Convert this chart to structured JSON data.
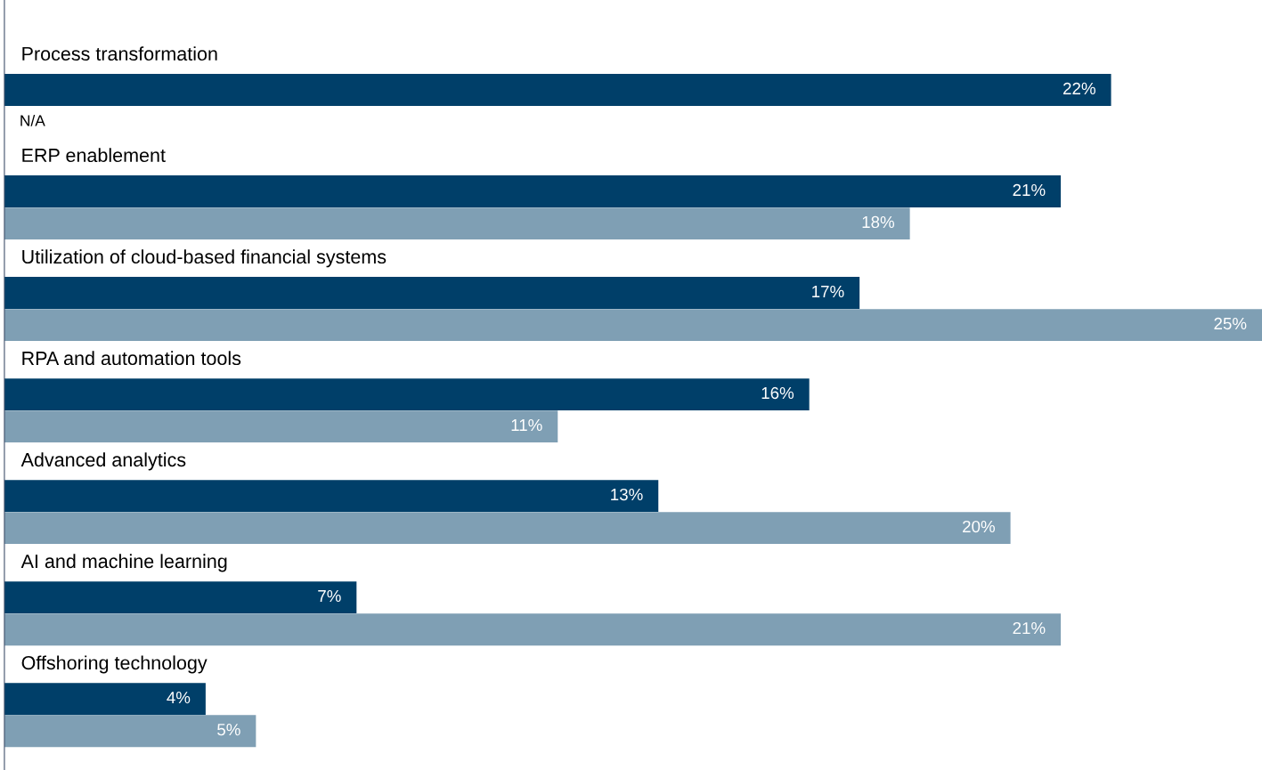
{
  "chart_data": {
    "type": "bar",
    "orientation": "horizontal",
    "categories": [
      "Process transformation",
      "ERP enablement",
      "Utilization of cloud-based financial systems",
      "RPA and automation tools",
      "Advanced analytics",
      "AI and machine learning",
      "Offshoring technology"
    ],
    "series": [
      {
        "color": "#003f69",
        "values": [
          22,
          21,
          17,
          16,
          13,
          7,
          4
        ],
        "value_labels": [
          "22%",
          "21%",
          "17%",
          "16%",
          "13%",
          "7%",
          "4%"
        ]
      },
      {
        "color": "#7f9fb4",
        "values": [
          null,
          18,
          25,
          11,
          20,
          21,
          5
        ],
        "value_labels": [
          "N/A",
          "18%",
          "25%",
          "11%",
          "20%",
          "21%",
          "5%"
        ]
      }
    ],
    "xlim": [
      0,
      25
    ]
  }
}
